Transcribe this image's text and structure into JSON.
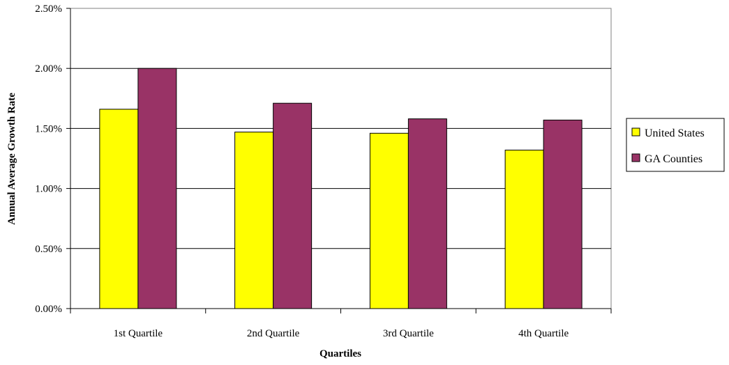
{
  "chart_data": {
    "type": "bar",
    "categories": [
      "1st Quartile",
      "2nd Quartile",
      "3rd Quartile",
      "4th Quartile"
    ],
    "series": [
      {
        "name": "United States",
        "values": [
          1.66,
          1.47,
          1.46,
          1.32
        ],
        "color": "#ffff00"
      },
      {
        "name": "GA Counties",
        "values": [
          2.0,
          1.71,
          1.58,
          1.57
        ],
        "color": "#993366"
      }
    ],
    "title": "",
    "xlabel": "Quartiles",
    "ylabel": "Annual Average Growth Rate",
    "ylim": [
      0,
      2.5
    ],
    "yticks": [
      {
        "value": 0,
        "label": "0.00%"
      },
      {
        "value": 0.5,
        "label": "0.50%"
      },
      {
        "value": 1.0,
        "label": "1.00%"
      },
      {
        "value": 1.5,
        "label": "1.50%"
      },
      {
        "value": 2.0,
        "label": "2.00%"
      },
      {
        "value": 2.5,
        "label": "2.50%"
      }
    ],
    "unit": "%",
    "grid": true,
    "legend_position": "right"
  }
}
